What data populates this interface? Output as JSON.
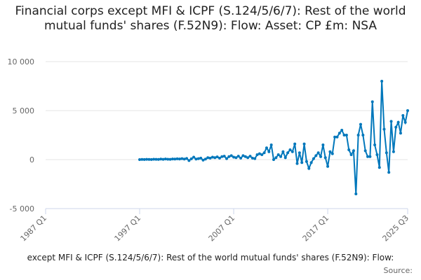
{
  "chart_data": {
    "type": "line",
    "title": "Financial corps except MFI & ICPF (S.124/5/6/7): Rest of the world mutual funds' shares (F.52N9): Flow: Asset: CP £m: NSA",
    "caption": "except MFI & ICPF (S.124/5/6/7): Rest of the world mutual funds' shares (F.52N9): Flow:",
    "source": "Source:",
    "color": "#0077bb",
    "xlim": [
      "1987 Q1",
      "2025 Q3"
    ],
    "xticks": [
      "1987 Q1",
      "1997 Q1",
      "2007 Q1",
      "2017 Q1",
      "2025 Q3"
    ],
    "ylim": [
      -5000,
      10000
    ],
    "yticks": [
      {
        "value": -5000,
        "label": "-5 000"
      },
      0,
      {
        "value": 5000,
        "label": "5 000"
      },
      {
        "value": 10000,
        "label": "10 000"
      }
    ],
    "grid": true,
    "x": [
      "1997 Q1",
      "1997 Q2",
      "1997 Q3",
      "1997 Q4",
      "1998 Q1",
      "1998 Q2",
      "1998 Q3",
      "1998 Q4",
      "1999 Q1",
      "1999 Q2",
      "1999 Q3",
      "1999 Q4",
      "2000 Q1",
      "2000 Q2",
      "2000 Q3",
      "2000 Q4",
      "2001 Q1",
      "2001 Q2",
      "2001 Q3",
      "2001 Q4",
      "2002 Q1",
      "2002 Q2",
      "2002 Q3",
      "2002 Q4",
      "2003 Q1",
      "2003 Q2",
      "2003 Q3",
      "2003 Q4",
      "2004 Q1",
      "2004 Q2",
      "2004 Q3",
      "2004 Q4",
      "2005 Q1",
      "2005 Q2",
      "2005 Q3",
      "2005 Q4",
      "2006 Q1",
      "2006 Q2",
      "2006 Q3",
      "2006 Q4",
      "2007 Q1",
      "2007 Q2",
      "2007 Q3",
      "2007 Q4",
      "2008 Q1",
      "2008 Q2",
      "2008 Q3",
      "2008 Q4",
      "2009 Q1",
      "2009 Q2",
      "2009 Q3",
      "2009 Q4",
      "2010 Q1",
      "2010 Q2",
      "2010 Q3",
      "2010 Q4",
      "2011 Q1",
      "2011 Q2",
      "2011 Q3",
      "2011 Q4",
      "2012 Q1",
      "2012 Q2",
      "2012 Q3",
      "2012 Q4",
      "2013 Q1",
      "2013 Q2",
      "2013 Q3",
      "2013 Q4",
      "2014 Q1",
      "2014 Q2",
      "2014 Q3",
      "2014 Q4",
      "2015 Q1",
      "2015 Q2",
      "2015 Q3",
      "2015 Q4",
      "2016 Q1",
      "2016 Q2",
      "2016 Q3",
      "2016 Q4",
      "2017 Q1",
      "2017 Q2",
      "2017 Q3",
      "2017 Q4",
      "2018 Q1",
      "2018 Q2",
      "2018 Q3",
      "2018 Q4",
      "2019 Q1",
      "2019 Q2",
      "2019 Q3",
      "2019 Q4",
      "2020 Q1",
      "2020 Q2",
      "2020 Q3",
      "2020 Q4",
      "2021 Q1",
      "2021 Q2",
      "2021 Q3",
      "2021 Q4",
      "2022 Q1",
      "2022 Q2",
      "2022 Q3",
      "2022 Q4",
      "2023 Q1",
      "2023 Q2",
      "2023 Q3",
      "2023 Q4",
      "2024 Q1",
      "2024 Q2",
      "2024 Q3",
      "2024 Q4",
      "2025 Q1",
      "2025 Q2",
      "2025 Q3"
    ],
    "values": [
      0,
      20,
      10,
      30,
      20,
      10,
      40,
      30,
      20,
      50,
      30,
      60,
      40,
      30,
      60,
      50,
      80,
      60,
      100,
      50,
      120,
      -100,
      80,
      250,
      50,
      100,
      150,
      -50,
      50,
      200,
      150,
      250,
      200,
      280,
      150,
      300,
      350,
      100,
      300,
      400,
      250,
      200,
      350,
      150,
      400,
      300,
      200,
      350,
      150,
      100,
      500,
      600,
      500,
      700,
      1200,
      800,
      1500,
      0,
      200,
      500,
      300,
      800,
      200,
      700,
      1000,
      800,
      1600,
      -400,
      700,
      -300,
      1600,
      -200,
      -900,
      -300,
      100,
      400,
      700,
      300,
      1500,
      200,
      -700,
      800,
      600,
      2300,
      2300,
      2700,
      3000,
      2500,
      2500,
      1000,
      500,
      900,
      -3500,
      2500,
      3600,
      2500,
      900,
      300,
      300,
      5900,
      1500,
      500,
      -800,
      8000,
      3100,
      700,
      -1300,
      3900,
      800,
      3300,
      3800,
      2700,
      4500,
      3800,
      5000
    ]
  }
}
